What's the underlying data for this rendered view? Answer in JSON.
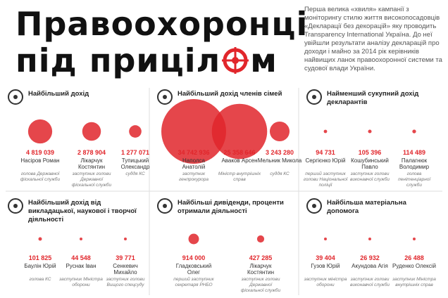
{
  "header": {
    "title_line1": "Правоохоронці",
    "title_line2_start": "під приціл",
    "title_line2_end": "м",
    "intro": "Перша велика «хвиля» кампанії з моніторингу стилю життя високопосадовців «Декларації без декорацій» яку проводить Transparency International Україна. До неї увійшли результати аналізу декларацій про доходи і майно за 2014 рік керівників найвищих ланок правоохоронної системи та судової влади України."
  },
  "sections": [
    {
      "title": "Найбільший дохід",
      "items": [
        {
          "amount": {
            "value": 4819039,
            "label": "4 819 039"
          },
          "name": "Насіров Роман",
          "role": "голова Державної фіскальної служби"
        },
        {
          "amount": {
            "value": 2878904,
            "label": "2 878 904"
          },
          "name": "Лікарчук Костянтин",
          "role": "заступник голови Державної фіскальної служби"
        },
        {
          "amount": {
            "value": 1277071,
            "label": "1 277 071"
          },
          "name": "Тупицький Олександр",
          "role": "суддя КС"
        }
      ]
    },
    {
      "title": "Найбільший дохід членів сімей",
      "items": [
        {
          "amount": {
            "value": 34742936,
            "label": "34 742 936"
          },
          "name": "Наполса Анатолій",
          "role": "заступник генпрокурора"
        },
        {
          "amount": {
            "value": 25358646,
            "label": "25 358 646"
          },
          "name": "Аваков Арсен",
          "role": "Міністр внутрішніх справ"
        },
        {
          "amount": {
            "value": 3243280,
            "label": "3 243 280"
          },
          "name": "Мельник Микола",
          "role": "суддя КС"
        }
      ]
    },
    {
      "title": "Найменший сукупний дохід декларантів",
      "items": [
        {
          "amount": {
            "value": 94731,
            "label": "94 731"
          },
          "name": "Сергієнко Юрій",
          "role": "перший заступник голови Національної поліції"
        },
        {
          "amount": {
            "value": 105396,
            "label": "105 396"
          },
          "name": "Кошубинський Павло",
          "role": "заступник голови виконавчої служби"
        },
        {
          "amount": {
            "value": 114489,
            "label": "114 489"
          },
          "name": "Палагнюк Володимир",
          "role": "голова пенітенціарної служби"
        }
      ]
    },
    {
      "title": "Найбільший дохід від викладацької, наукової і творчої діяльності",
      "items": [
        {
          "amount": {
            "value": 101825,
            "label": "101 825"
          },
          "name": "Баулін Юрій",
          "role": "голова КС"
        },
        {
          "amount": {
            "value": 44548,
            "label": "44 548"
          },
          "name": "Руснак Іван",
          "role": "заступник Міністра оборони"
        },
        {
          "amount": {
            "value": 39771,
            "label": "39 771"
          },
          "name": "Сенкевич Михайло",
          "role": "заступник голови Вищого спецсуду"
        }
      ]
    },
    {
      "title": "Найбільші дивіденди, проценти отримали діяльності",
      "items": [
        {
          "amount": {
            "value": 914000,
            "label": "914 000"
          },
          "name": "Гладковський Олег",
          "role": "перший заступник секретаря РНБО"
        },
        {
          "amount": {
            "value": 427285,
            "label": "427 285"
          },
          "name": "Лікарчук Костянтин",
          "role": "заступник голови Державної фіскальної служби"
        }
      ]
    },
    {
      "title": "Найбільша матеріальна допомога",
      "items": [
        {
          "amount": {
            "value": 39404,
            "label": "39 404"
          },
          "name": "Гузов Юрій",
          "role": "заступник міністра оборони"
        },
        {
          "amount": {
            "value": 26932,
            "label": "26 932"
          },
          "name": "Акундова Агія",
          "role": "заступник голови виконавчої служби"
        },
        {
          "amount": {
            "value": 26488,
            "label": "26 488"
          },
          "name": "Руденко Олексій",
          "role": "заступник Міністра внутрішніх справ"
        }
      ]
    }
  ]
}
